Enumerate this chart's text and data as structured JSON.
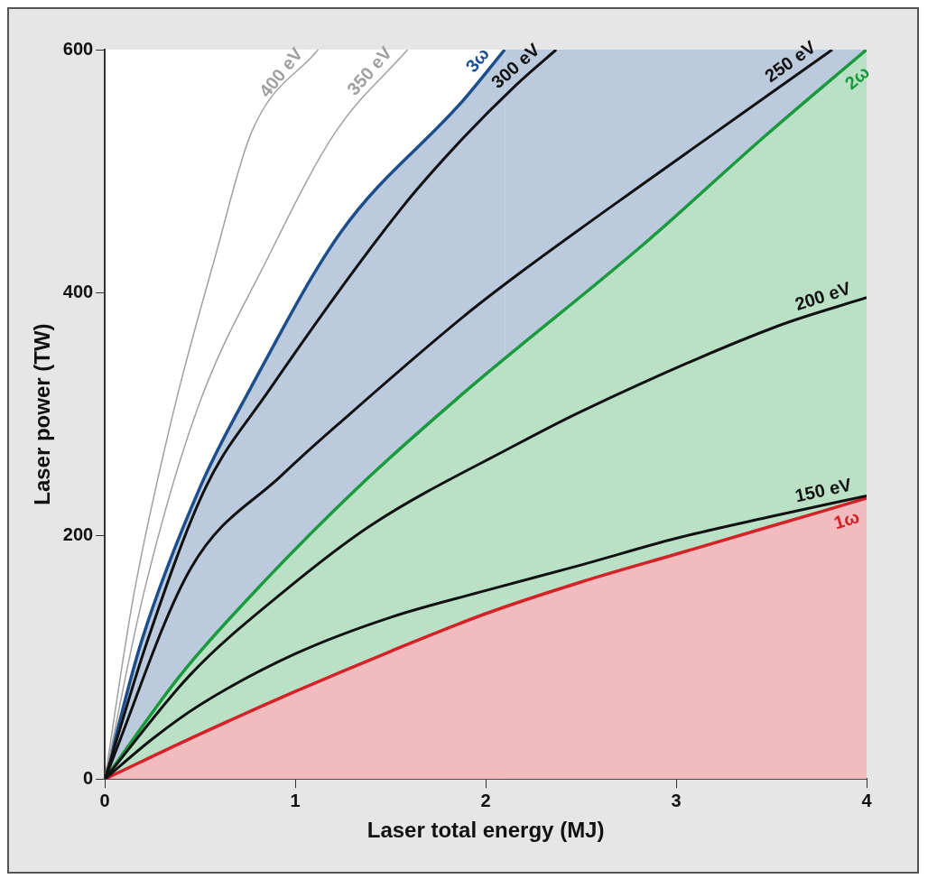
{
  "chart_data": {
    "type": "line",
    "xlabel": "Laser total energy (MJ)",
    "ylabel": "Laser power (TW)",
    "xlim": [
      0,
      4
    ],
    "ylim": [
      0,
      600
    ],
    "xticks": [
      0,
      1,
      2,
      3,
      4
    ],
    "yticks": [
      0,
      200,
      400,
      600
    ],
    "series": [
      {
        "name": "1ω",
        "type": "area",
        "color": "#d42027",
        "x": [
          0,
          0.5,
          1,
          1.5,
          2,
          2.5,
          3,
          3.5,
          4
        ],
        "values": [
          0,
          37,
          72,
          105,
          136,
          162,
          185,
          208,
          231
        ]
      },
      {
        "name": "2ω",
        "type": "area",
        "color": "#1a9a3c",
        "x": [
          0,
          0.4,
          0.84,
          1.33,
          1.88,
          2.83,
          3.46,
          4
        ],
        "values": [
          0,
          86,
          163,
          240,
          317,
          440,
          528,
          600
        ]
      },
      {
        "name": "3ω",
        "type": "area",
        "color": "#1d4e8c",
        "x": [
          0,
          0.19,
          0.5,
          0.76,
          1.24,
          1.88,
          2.1
        ],
        "values": [
          0,
          112,
          240,
          320,
          450,
          558,
          600
        ]
      },
      {
        "name": "150 eV",
        "type": "line",
        "color": "#111111",
        "x": [
          0,
          0.25,
          0.5,
          1,
          1.5,
          2,
          2.5,
          3,
          3.5,
          4
        ],
        "values": [
          0,
          33,
          61,
          103,
          133,
          155,
          176,
          198,
          216,
          233
        ]
      },
      {
        "name": "200 eV",
        "type": "line",
        "color": "#111111",
        "x": [
          0,
          0.45,
          0.93,
          1.4,
          2.16,
          2.51,
          3.54,
          4
        ],
        "values": [
          0,
          86,
          153,
          209,
          275,
          303,
          373,
          396
        ]
      },
      {
        "name": "250 eV",
        "type": "line",
        "color": "#111111",
        "x": [
          0,
          0.45,
          0.93,
          1.27,
          1.88,
          2.16,
          2.83,
          3.82
        ],
        "values": [
          0,
          173,
          250,
          298,
          380,
          414,
          490,
          600
        ]
      },
      {
        "name": "300 eV",
        "type": "line",
        "color": "#111111",
        "x": [
          0,
          0.22,
          0.53,
          0.85,
          1.56,
          1.88,
          2.16,
          2.37
        ],
        "values": [
          0,
          112,
          240,
          317,
          470,
          527,
          571,
          600
        ]
      },
      {
        "name": "350 eV",
        "type": "line",
        "color": "#a0a0a0",
        "x": [
          0,
          0.2,
          0.48,
          0.86,
          1.21,
          1.59
        ],
        "values": [
          0,
          150,
          302,
          430,
          532,
          600
        ]
      },
      {
        "name": "400 eV",
        "type": "line",
        "color": "#a0a0a0",
        "x": [
          0,
          0.15,
          0.36,
          0.58,
          0.77,
          1.12
        ],
        "values": [
          0,
          150,
          302,
          430,
          532,
          600
        ]
      }
    ]
  }
}
